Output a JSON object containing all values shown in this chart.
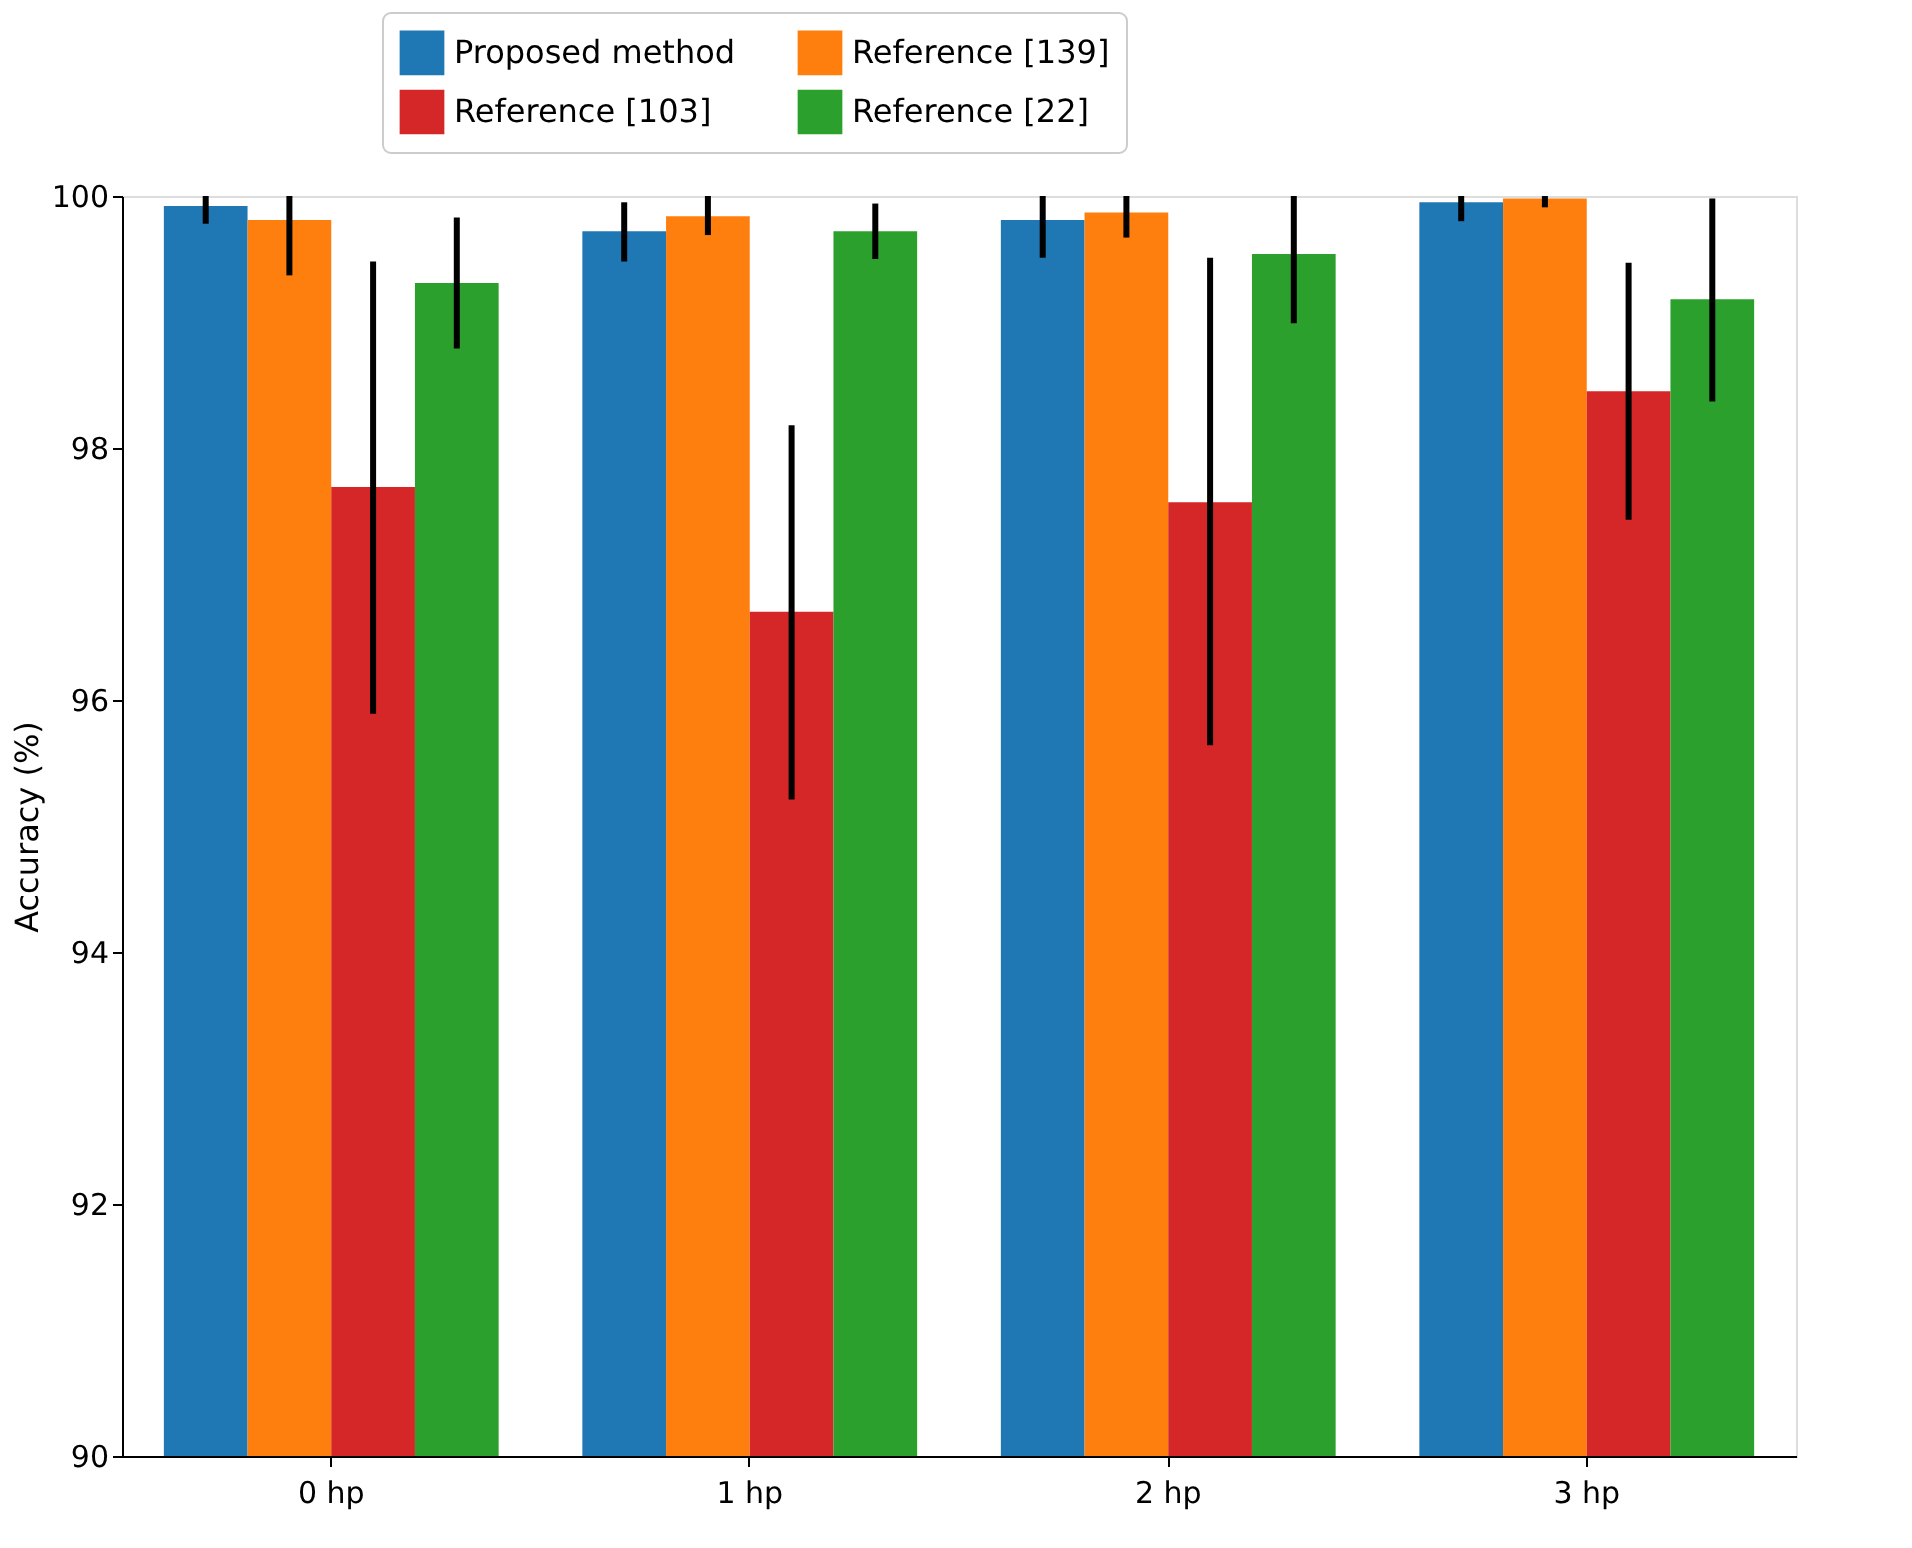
{
  "chart_data": {
    "type": "bar",
    "ylabel": "Accuracy (%)",
    "categories": [
      "0 hp",
      "1 hp",
      "2 hp",
      "3 hp"
    ],
    "series": [
      {
        "name": "Proposed method",
        "color": "#1f77b4",
        "values": [
          99.92,
          99.72,
          99.81,
          99.95
        ],
        "errors": [
          [
            99.78,
            100
          ],
          [
            99.48,
            99.95
          ],
          [
            99.51,
            100
          ],
          [
            99.8,
            100
          ]
        ]
      },
      {
        "name": "Reference [139]",
        "color": "#ff7f0e",
        "values": [
          99.81,
          99.84,
          99.87,
          99.98
        ],
        "errors": [
          [
            99.37,
            100
          ],
          [
            99.69,
            100
          ],
          [
            99.67,
            100
          ],
          [
            99.91,
            100
          ]
        ]
      },
      {
        "name": "Reference [103]",
        "color": "#d62728",
        "values": [
          97.69,
          96.7,
          97.57,
          98.45
        ],
        "errors": [
          [
            95.89,
            99.48
          ],
          [
            95.21,
            98.18
          ],
          [
            95.64,
            99.51
          ],
          [
            97.43,
            99.47
          ]
        ]
      },
      {
        "name": "Reference [22]",
        "color": "#2ca02c",
        "values": [
          99.31,
          99.72,
          99.54,
          99.18
        ],
        "errors": [
          [
            98.79,
            99.83
          ],
          [
            99.5,
            99.94
          ],
          [
            98.99,
            100
          ],
          [
            98.37,
            99.98
          ]
        ]
      }
    ],
    "ylim": [
      90,
      100
    ],
    "yticks": [
      90,
      92,
      94,
      96,
      98,
      100
    ],
    "grid": false,
    "legend": "top"
  }
}
